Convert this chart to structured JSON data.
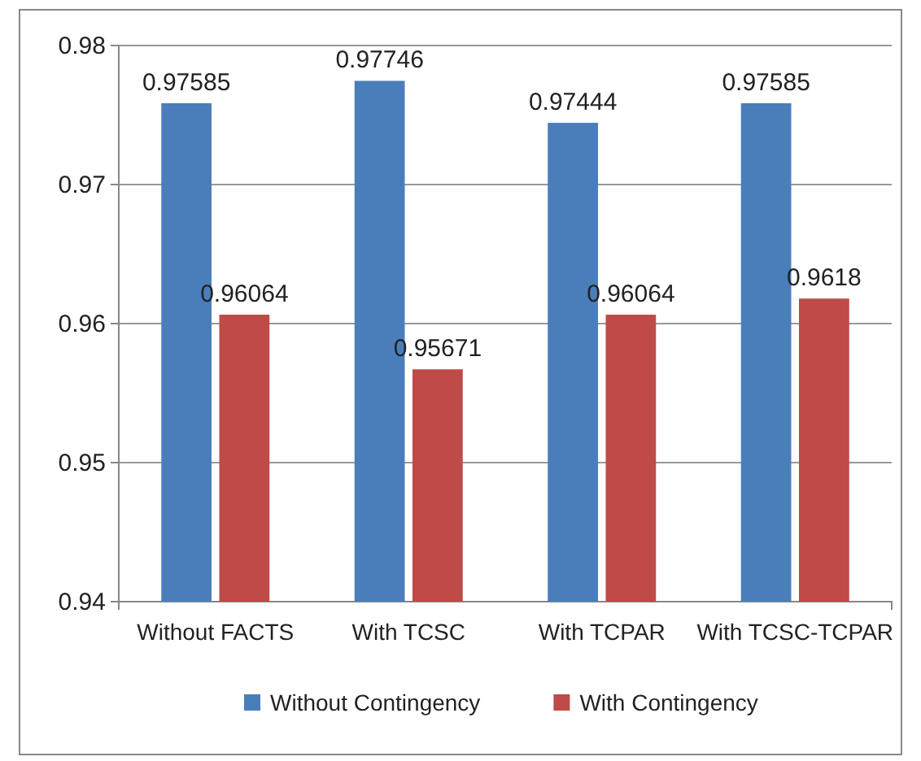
{
  "chart_data": {
    "type": "bar",
    "categories": [
      "Without FACTS",
      "With TCSC",
      "With TCPAR",
      "With TCSC-TCPAR"
    ],
    "series": [
      {
        "name": "Without Contingency",
        "color": "#4a7ebb",
        "values": [
          0.97585,
          0.97746,
          0.97444,
          0.97585
        ]
      },
      {
        "name": "With Contingency",
        "color": "#be4b48",
        "values": [
          0.96064,
          0.95671,
          0.96064,
          0.9618
        ]
      }
    ],
    "ylim": [
      0.94,
      0.98
    ],
    "yticks": [
      0.94,
      0.95,
      0.96,
      0.97,
      0.98
    ],
    "grid": "y",
    "legend": "bottom",
    "data_labels": true
  }
}
